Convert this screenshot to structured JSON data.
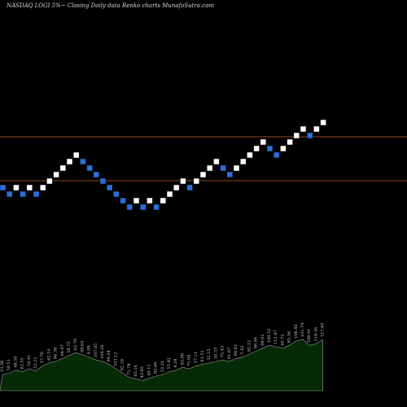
{
  "header": {
    "symbol": "NASDAQ LOGI",
    "hint": "5%~",
    "description": "Closing Daily data",
    "chart_kind": "Renko",
    "source": "charts MunafaSutra.com"
  },
  "colors": {
    "background": "#000000",
    "up_brick": "#ffffff",
    "down_brick": "#2a6fdb",
    "level_line": "#8b4a1a",
    "volume_fill": "#062a06",
    "volume_stroke": "#9a9a9a"
  },
  "chart_data": {
    "type": "renko",
    "levels": [
      1,
      -1
    ],
    "bricks": [
      {
        "level": -4,
        "dir": "down"
      },
      {
        "level": -5,
        "dir": "down"
      },
      {
        "level": -4,
        "dir": "up"
      },
      {
        "level": -5,
        "dir": "down"
      },
      {
        "level": -4,
        "dir": "up"
      },
      {
        "level": -5,
        "dir": "down"
      },
      {
        "level": -4,
        "dir": "up"
      },
      {
        "level": -3,
        "dir": "up"
      },
      {
        "level": -2,
        "dir": "up"
      },
      {
        "level": -1,
        "dir": "up"
      },
      {
        "level": 0,
        "dir": "up"
      },
      {
        "level": 1,
        "dir": "up"
      },
      {
        "level": 0,
        "dir": "down"
      },
      {
        "level": -1,
        "dir": "down"
      },
      {
        "level": -2,
        "dir": "down"
      },
      {
        "level": -3,
        "dir": "down"
      },
      {
        "level": -4,
        "dir": "down"
      },
      {
        "level": -5,
        "dir": "down"
      },
      {
        "level": -6,
        "dir": "down"
      },
      {
        "level": -7,
        "dir": "down"
      },
      {
        "level": -6,
        "dir": "up"
      },
      {
        "level": -7,
        "dir": "down"
      },
      {
        "level": -6,
        "dir": "up"
      },
      {
        "level": -7,
        "dir": "down"
      },
      {
        "level": -6,
        "dir": "up"
      },
      {
        "level": -5,
        "dir": "up"
      },
      {
        "level": -4,
        "dir": "up"
      },
      {
        "level": -3,
        "dir": "up"
      },
      {
        "level": -4,
        "dir": "down"
      },
      {
        "level": -3,
        "dir": "up"
      },
      {
        "level": -2,
        "dir": "up"
      },
      {
        "level": -1,
        "dir": "up"
      },
      {
        "level": 0,
        "dir": "up"
      },
      {
        "level": -1,
        "dir": "down"
      },
      {
        "level": -2,
        "dir": "down"
      },
      {
        "level": -1,
        "dir": "up"
      },
      {
        "level": 0,
        "dir": "up"
      },
      {
        "level": 1,
        "dir": "up"
      },
      {
        "level": 2,
        "dir": "up"
      },
      {
        "level": 3,
        "dir": "up"
      },
      {
        "level": 2,
        "dir": "down"
      },
      {
        "level": 1,
        "dir": "down"
      },
      {
        "level": 2,
        "dir": "up"
      },
      {
        "level": 3,
        "dir": "up"
      },
      {
        "level": 4,
        "dir": "up"
      },
      {
        "level": 5,
        "dir": "up"
      },
      {
        "level": 4,
        "dir": "down"
      },
      {
        "level": 5,
        "dir": "up"
      },
      {
        "level": 6,
        "dir": "up"
      }
    ],
    "volume_series": [
      22,
      24,
      28,
      26,
      30,
      27,
      34,
      38,
      40,
      44,
      48,
      52,
      49,
      46,
      42,
      40,
      36,
      30,
      24,
      18,
      16,
      14,
      17,
      20,
      22,
      26,
      28,
      32,
      30,
      34,
      36,
      38,
      40,
      42,
      40,
      44,
      46,
      50,
      54,
      58,
      62,
      60,
      58,
      62,
      68,
      70,
      62,
      64,
      70
    ],
    "volume_labels": [
      "13.38",
      "50.51",
      "48.50",
      "62.55",
      "54.41",
      "52.21",
      "57.76",
      "62.10",
      "66.39",
      "64.47",
      "58.75",
      "62.70",
      "88.63",
      "4.99",
      "107.05",
      "104.26",
      "99.54",
      "103.12",
      "92.19",
      "72.78",
      "65.16",
      "43.85",
      "49.11",
      "83.60",
      "52.31",
      "55.42",
      "4.24",
      "93.09",
      "75.09",
      "57.11",
      "61.51",
      "32.25",
      "55.33",
      "75.43",
      "81.67",
      "99.42",
      "5.42",
      "82.12",
      "98.06",
      "99.02",
      "109.33",
      "112.47",
      "60.72",
      "85.56",
      "106.93",
      "101.74",
      "108.91",
      "118.16",
      "117.85"
    ]
  }
}
